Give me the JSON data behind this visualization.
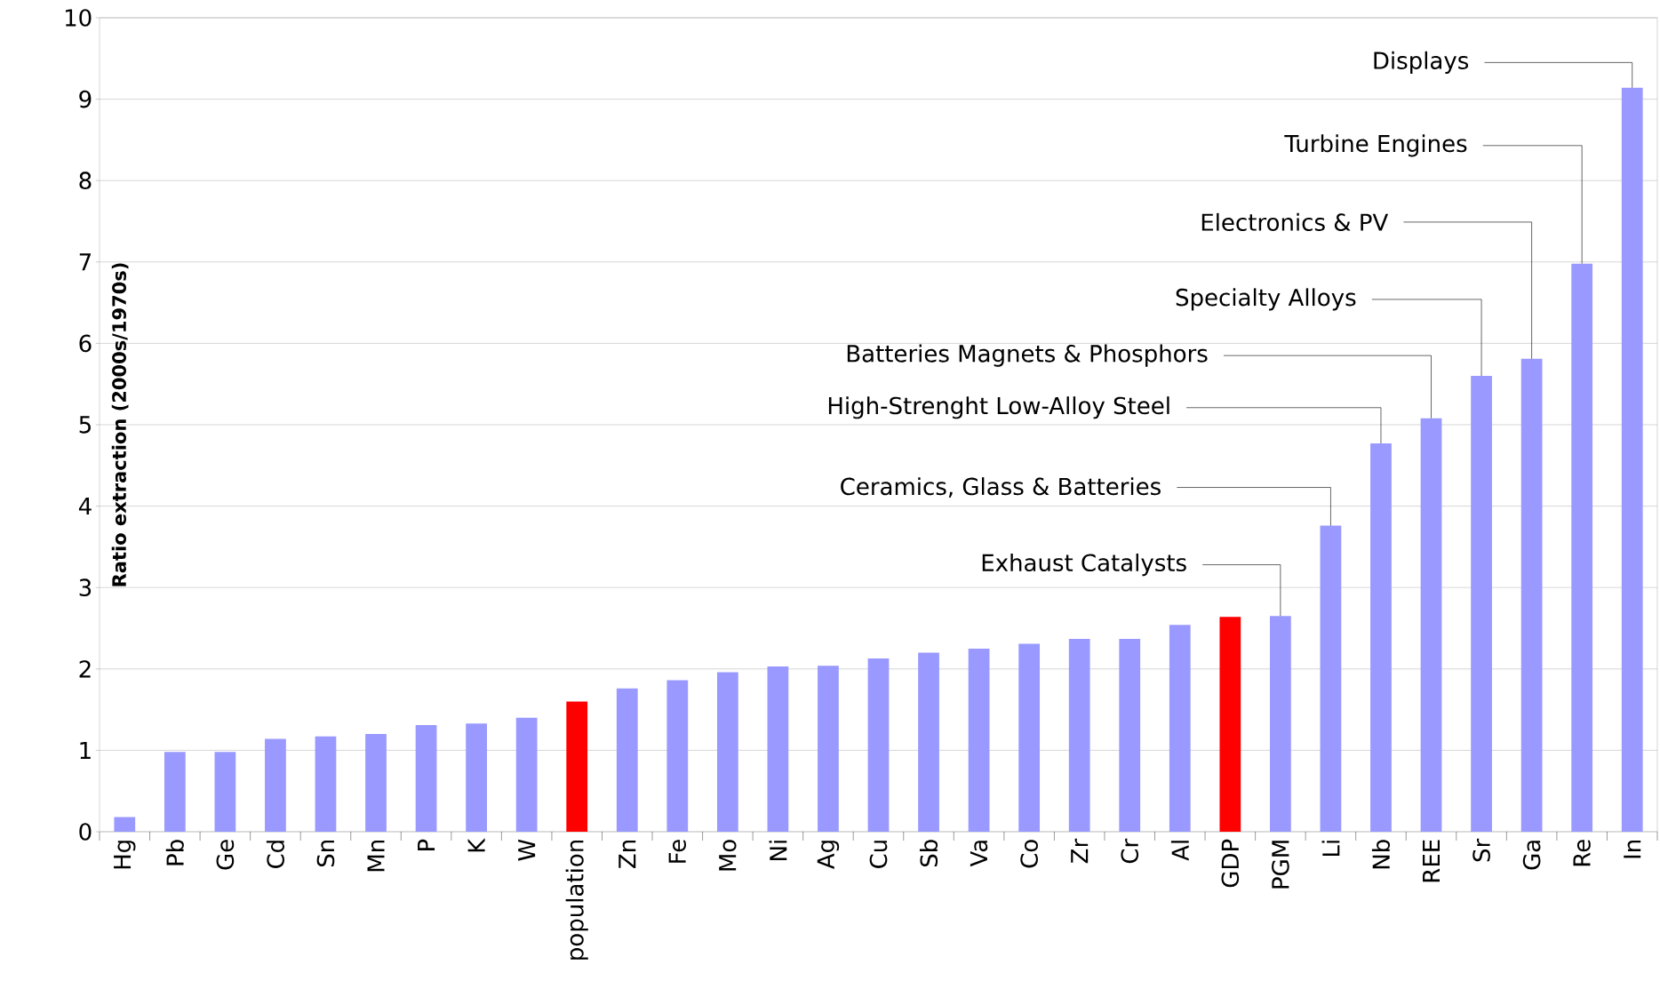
{
  "chart_data": {
    "type": "bar",
    "ylabel": "Ratio extraction (2000s/1970s)",
    "categories": [
      "Hg",
      "Pb",
      "Ge",
      "Cd",
      "Sn",
      "Mn",
      "P",
      "K",
      "W",
      "population",
      "Zn",
      "Fe",
      "Mo",
      "Ni",
      "Ag",
      "Cu",
      "Sb",
      "Va",
      "Co",
      "Zr",
      "Cr",
      "Al",
      "GDP",
      "PGM",
      "Li",
      "Nb",
      "REE",
      "Sr",
      "Ga",
      "Re",
      "In"
    ],
    "values": [
      0.18,
      0.98,
      0.98,
      1.14,
      1.17,
      1.2,
      1.31,
      1.33,
      1.4,
      1.6,
      1.76,
      1.86,
      1.96,
      2.03,
      2.04,
      2.13,
      2.2,
      2.25,
      2.31,
      2.37,
      2.37,
      2.54,
      2.64,
      2.65,
      3.76,
      4.77,
      5.08,
      5.6,
      5.81,
      6.98,
      9.14
    ],
    "colors": [
      "#9999ff",
      "#9999ff",
      "#9999ff",
      "#9999ff",
      "#9999ff",
      "#9999ff",
      "#9999ff",
      "#9999ff",
      "#9999ff",
      "#ff0000",
      "#9999ff",
      "#9999ff",
      "#9999ff",
      "#9999ff",
      "#9999ff",
      "#9999ff",
      "#9999ff",
      "#9999ff",
      "#9999ff",
      "#9999ff",
      "#9999ff",
      "#9999ff",
      "#ff0000",
      "#9999ff",
      "#9999ff",
      "#9999ff",
      "#9999ff",
      "#9999ff",
      "#9999ff",
      "#9999ff",
      "#9999ff"
    ],
    "ylim": [
      0,
      10
    ],
    "yticks": [
      0,
      1,
      2,
      3,
      4,
      5,
      6,
      7,
      8,
      9,
      10
    ],
    "grid": "y",
    "annotations": [
      {
        "text": "Exhaust Catalysts",
        "x": "PGM",
        "y": 2.65
      },
      {
        "text": "Ceramics, Glass & Batteries",
        "x": "Li",
        "y": 3.76
      },
      {
        "text": "High-Strenght Low-Alloy Steel",
        "x": "Nb",
        "y": 4.77
      },
      {
        "text": "Batteries Magnets & Phosphors",
        "x": "REE",
        "y": 5.08
      },
      {
        "text": "Specialty Alloys",
        "x": "Sr",
        "y": 5.6
      },
      {
        "text": "Electronics & PV",
        "x": "Ga",
        "y": 5.81
      },
      {
        "text": "Turbine Engines",
        "x": "Re",
        "y": 6.98
      },
      {
        "text": "Displays",
        "x": "In",
        "y": 9.14
      }
    ]
  }
}
